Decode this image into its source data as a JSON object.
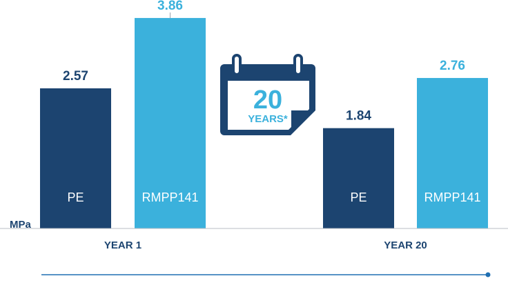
{
  "chart_data": {
    "type": "bar",
    "unit_label": "MPa",
    "groups": [
      "YEAR 1",
      "YEAR 20"
    ],
    "series": [
      {
        "name": "PE",
        "color": "#1c4470"
      },
      {
        "name": "RMPP141",
        "color": "#3bb1dc"
      }
    ],
    "bars": [
      {
        "group": "YEAR 1",
        "series": "PE",
        "value": 2.57,
        "label": "2.57",
        "bar_text": "PE"
      },
      {
        "group": "YEAR 1",
        "series": "RMPP141",
        "value": 3.86,
        "label": "3.86",
        "bar_text": "RMPP141"
      },
      {
        "group": "YEAR 20",
        "series": "PE",
        "value": 1.84,
        "label": "1.84",
        "bar_text": "PE"
      },
      {
        "group": "YEAR 20",
        "series": "RMPP141",
        "value": 2.76,
        "label": "2.76",
        "bar_text": "RMPP141"
      }
    ],
    "ylim": [
      0,
      4.19
    ],
    "grid": false,
    "legend": "none"
  },
  "badge": {
    "number": "20",
    "text": "YEARS*",
    "icon": "calendar-icon"
  },
  "colors": {
    "dark": "#1c4470",
    "light": "#3bb1dc",
    "axis": "#9aa3ad",
    "timeline": "#1f6fb2"
  }
}
